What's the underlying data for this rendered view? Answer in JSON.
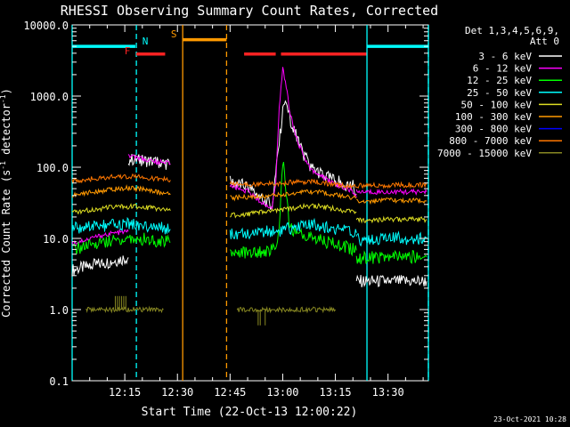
{
  "chart_data": {
    "type": "line",
    "title": "RHESSI Observing Summary Count Rates, Corrected",
    "xlabel": "Start Time (22-Oct-13 12:00:22)",
    "ylabel": "Corrected Count Rate (s⁻¹ detector⁻¹)",
    "ylabel_main": "Corrected Count Rate (s",
    "ylabel_sup1": "-1",
    "ylabel_mid": " detector",
    "ylabel_sup2": "-1",
    "ylabel_end": ")",
    "x_unit": "minutes since 12:00:22",
    "xlim": [
      0,
      101.5
    ],
    "ylim": [
      0.1,
      10000
    ],
    "yscale": "log",
    "x_ticks": [
      {
        "label": "12:15",
        "x": 15
      },
      {
        "label": "12:30",
        "x": 30
      },
      {
        "label": "12:45",
        "x": 45
      },
      {
        "label": "13:00",
        "x": 60
      },
      {
        "label": "13:15",
        "x": 75
      },
      {
        "label": "13:30",
        "x": 90
      }
    ],
    "y_ticks": [
      {
        "label": "0.1",
        "v": 0.1
      },
      {
        "label": "1.0",
        "v": 1
      },
      {
        "label": "10.0",
        "v": 10
      },
      {
        "label": "100.0",
        "v": 100
      },
      {
        "label": "1000.0",
        "v": 1000
      },
      {
        "label": "10000.0",
        "v": 10000
      }
    ],
    "legend_header": [
      "Det 1,3,4,5,6,9,",
      "Att 0"
    ],
    "legend_position": "right",
    "series": [
      {
        "name": "3 - 6 keV",
        "color": "#ffffff",
        "dense": true,
        "segments": [
          [
            [
              0,
              3.6
            ],
            [
              5,
              4.1
            ],
            [
              10,
              4.6
            ],
            [
              16,
              5.4
            ]
          ],
          [
            [
              16,
              130
            ],
            [
              20,
              125
            ],
            [
              24,
              118
            ],
            [
              28,
              110
            ]
          ],
          [
            [
              45,
              62
            ],
            [
              50,
              54
            ],
            [
              54,
              36
            ],
            [
              57,
              30
            ],
            [
              60,
              600
            ],
            [
              61,
              750
            ],
            [
              62,
              500
            ],
            [
              64,
              260
            ],
            [
              66,
              150
            ],
            [
              68,
              100
            ],
            [
              72,
              75
            ],
            [
              76,
              62
            ],
            [
              80,
              54
            ],
            [
              81,
              42
            ]
          ],
          [
            [
              81,
              2.5
            ],
            [
              90,
              2.5
            ],
            [
              101,
              2.5
            ]
          ]
        ]
      },
      {
        "name": "6 - 12 keV",
        "color": "#ff00ff",
        "segments": [
          [
            [
              0,
              8.5
            ],
            [
              5,
              10
            ],
            [
              10,
              11.5
            ],
            [
              16,
              12.5
            ]
          ],
          [
            [
              16,
              145
            ],
            [
              20,
              130
            ],
            [
              24,
              120
            ],
            [
              28,
              112
            ]
          ],
          [
            [
              45,
              55
            ],
            [
              50,
              46
            ],
            [
              54,
              32
            ],
            [
              57,
              27
            ],
            [
              58,
              60
            ],
            [
              59,
              650
            ],
            [
              60,
              2400
            ],
            [
              61,
              1400
            ],
            [
              62,
              600
            ],
            [
              64,
              250
            ],
            [
              66,
              140
            ],
            [
              68,
              95
            ],
            [
              72,
              70
            ],
            [
              76,
              55
            ],
            [
              80,
              46
            ],
            [
              81,
              38
            ]
          ],
          [
            [
              81,
              45
            ],
            [
              90,
              45
            ],
            [
              101,
              45
            ]
          ]
        ]
      },
      {
        "name": "12 - 25 keV",
        "color": "#00ff00",
        "dense": true,
        "segments": [
          [
            [
              0,
              7
            ],
            [
              5,
              8
            ],
            [
              10,
              9
            ],
            [
              16,
              10
            ],
            [
              20,
              9.8
            ],
            [
              24,
              9.3
            ],
            [
              28,
              8.8
            ]
          ],
          [
            [
              45,
              6.5
            ],
            [
              50,
              6.3
            ],
            [
              55,
              6.5
            ],
            [
              58,
              7
            ],
            [
              59,
              12
            ],
            [
              60,
              130
            ],
            [
              61,
              40
            ],
            [
              62,
              15
            ],
            [
              64,
              11.5
            ],
            [
              68,
              10.5
            ],
            [
              72,
              9
            ],
            [
              76,
              8
            ],
            [
              80,
              7
            ],
            [
              81,
              6.8
            ]
          ],
          [
            [
              81,
              5.3
            ],
            [
              90,
              5.5
            ],
            [
              101,
              5.5
            ]
          ]
        ]
      },
      {
        "name": "25 - 50 keV",
        "color": "#00ffff",
        "dense": true,
        "segments": [
          [
            [
              0,
              14
            ],
            [
              5,
              14.5
            ],
            [
              10,
              15
            ],
            [
              16,
              16
            ],
            [
              20,
              15.5
            ],
            [
              24,
              14.5
            ],
            [
              28,
              13.5
            ]
          ],
          [
            [
              45,
              11.5
            ],
            [
              50,
              12
            ],
            [
              55,
              12.5
            ],
            [
              60,
              13
            ],
            [
              65,
              15
            ],
            [
              70,
              15.2
            ],
            [
              75,
              13.5
            ],
            [
              81,
              12
            ]
          ],
          [
            [
              81,
              9.5
            ],
            [
              90,
              10
            ],
            [
              101,
              10
            ]
          ]
        ]
      },
      {
        "name": "50 - 100 keV",
        "color": "#dddd22",
        "segments": [
          [
            [
              0,
              23
            ],
            [
              5,
              25
            ],
            [
              10,
              27
            ],
            [
              16,
              28
            ],
            [
              20,
              28
            ],
            [
              24,
              26
            ],
            [
              28,
              24.5
            ]
          ],
          [
            [
              45,
              21
            ],
            [
              50,
              22
            ],
            [
              55,
              23.5
            ],
            [
              60,
              25
            ],
            [
              65,
              28
            ],
            [
              70,
              28.5
            ],
            [
              75,
              26
            ],
            [
              81,
              23
            ]
          ],
          [
            [
              81,
              18
            ],
            [
              90,
              18.5
            ],
            [
              101,
              18.5
            ]
          ]
        ]
      },
      {
        "name": "100 - 300 keV",
        "color": "#ff9900",
        "segments": [
          [
            [
              0,
              40
            ],
            [
              5,
              44
            ],
            [
              10,
              48
            ],
            [
              16,
              51
            ],
            [
              20,
              49
            ],
            [
              24,
              45
            ],
            [
              28,
              41
            ]
          ],
          [
            [
              45,
              37
            ],
            [
              50,
              38
            ],
            [
              55,
              39
            ],
            [
              60,
              41
            ],
            [
              65,
              44
            ],
            [
              70,
              45
            ],
            [
              75,
              41
            ],
            [
              81,
              37
            ]
          ],
          [
            [
              81,
              33
            ],
            [
              90,
              34
            ],
            [
              101,
              34
            ]
          ]
        ]
      },
      {
        "name": "300 - 800 keV",
        "color": "#0000ff",
        "segments": []
      },
      {
        "name": "800 - 7000 keV",
        "color": "#ff7700",
        "segments": [
          [
            [
              0,
              64
            ],
            [
              5,
              68
            ],
            [
              10,
              72
            ],
            [
              16,
              75
            ],
            [
              20,
              72
            ],
            [
              24,
              69
            ],
            [
              28,
              66
            ]
          ],
          [
            [
              45,
              58
            ],
            [
              50,
              57
            ],
            [
              55,
              58
            ],
            [
              60,
              60
            ],
            [
              65,
              63
            ],
            [
              70,
              62
            ],
            [
              75,
              57
            ],
            [
              81,
              53
            ]
          ],
          [
            [
              81,
              55
            ],
            [
              90,
              56
            ],
            [
              101,
              57
            ]
          ]
        ]
      },
      {
        "name": "7000 - 15000 keV",
        "color": "#888822",
        "segments": [
          [
            [
              4,
              1.0
            ],
            [
              16,
              1.0
            ],
            [
              26,
              1.0
            ]
          ],
          [
            [
              47,
              1.0
            ],
            [
              55,
              1.0
            ],
            [
              75,
              1.0
            ]
          ]
        ]
      }
    ],
    "spikes": [
      {
        "series": "7000 - 15000 keV",
        "x": [
          12.3,
          12.9,
          13.5,
          14.1,
          14.7,
          15.3
        ],
        "base": 1.0,
        "peak": 1.55
      },
      {
        "series": "7000 - 15000 keV",
        "x": [
          53,
          53.6,
          55
        ],
        "base": 1.0,
        "peak": 0.6
      }
    ],
    "markers": [
      {
        "label": "",
        "color": "#00ffff",
        "style": "solid",
        "x": [
          0,
          101.5
        ],
        "bar": [
          0,
          18
        ]
      },
      {
        "label": "N",
        "color": "#00ffff",
        "style": "dashed",
        "x": [
          18.3
        ]
      },
      {
        "label": "F",
        "color": "#ff2222",
        "x": [],
        "bar": [
          18.3,
          26.5
        ]
      },
      {
        "label": "S",
        "color": "#ff9900",
        "style": "solid",
        "x": [
          31.5
        ],
        "bar": [
          31.5,
          44
        ]
      },
      {
        "label": "",
        "color": "#ff9900",
        "style": "dashed",
        "x": [
          44
        ]
      },
      {
        "label": "",
        "color": "#ff2222",
        "x": [],
        "bar": [
          49,
          58
        ]
      },
      {
        "label": "",
        "color": "#ff2222",
        "x": [],
        "bar": [
          59.5,
          84
        ]
      },
      {
        "label": "",
        "color": "#00ffff",
        "style": "solid",
        "x": [
          84
        ],
        "bar": [
          84,
          101.5
        ]
      },
      {
        "label": "",
        "color": "#00ffff",
        "style": "dashed",
        "x": [
          101.5
        ]
      }
    ],
    "footer": "23-Oct-2021 10:28"
  }
}
